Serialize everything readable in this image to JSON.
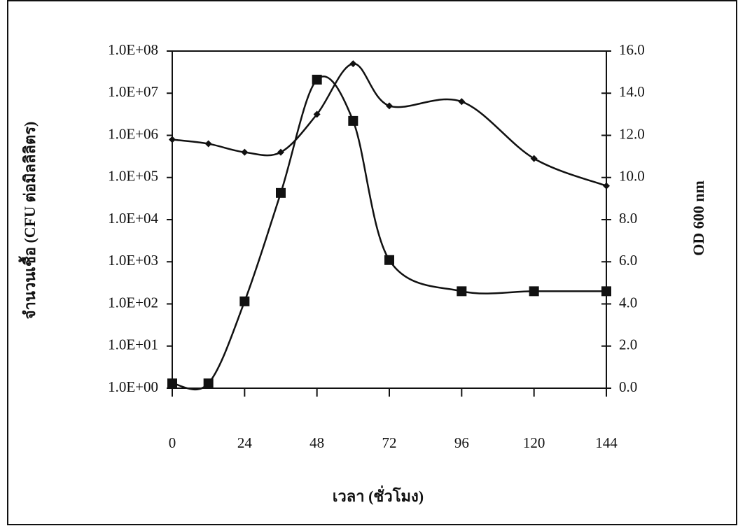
{
  "chart_data": {
    "type": "line",
    "x": [
      0,
      12,
      24,
      36,
      48,
      60,
      72,
      96,
      120,
      144
    ],
    "xlim": [
      0,
      144
    ],
    "xticks": [
      0,
      24,
      48,
      72,
      96,
      120,
      144
    ],
    "x_label": "เวลา (ชั่วโมง)",
    "y_label": "จำนวนเชื้อ (CFU ต่อมิลลิลิตร)",
    "y2_label": "OD 600 nm",
    "yscale": "log",
    "ylim": [
      1,
      100000000
    ],
    "yticks": [
      {
        "value": 1,
        "label": "1.0E+00"
      },
      {
        "value": 10,
        "label": "1.0E+01"
      },
      {
        "value": 100,
        "label": "1.0E+02"
      },
      {
        "value": 1000,
        "label": "1.0E+03"
      },
      {
        "value": 10000,
        "label": "1.0E+04"
      },
      {
        "value": 100000,
        "label": "1.0E+05"
      },
      {
        "value": 1000000,
        "label": "1.0E+06"
      },
      {
        "value": 10000000,
        "label": "1.0E+07"
      },
      {
        "value": 100000000,
        "label": "1.0E+08"
      }
    ],
    "y2lim": [
      0,
      16
    ],
    "y2ticks": [
      {
        "value": 0,
        "label": "0.0"
      },
      {
        "value": 2,
        "label": "2.0"
      },
      {
        "value": 4,
        "label": "4.0"
      },
      {
        "value": 6,
        "label": "6.0"
      },
      {
        "value": 8,
        "label": "8.0"
      },
      {
        "value": 10,
        "label": "10.0"
      },
      {
        "value": 12,
        "label": "12.0"
      },
      {
        "value": 14,
        "label": "14.0"
      },
      {
        "value": 16,
        "label": "16.0"
      }
    ],
    "series": [
      {
        "color": "#111111",
        "marker": "square",
        "values": [
          1.3,
          1.3,
          115,
          43000,
          21000000,
          2200000,
          1100,
          200,
          200,
          200
        ]
      },
      {
        "color": "#111111",
        "marker": "diamond",
        "axis": "y2",
        "values": [
          11.8,
          11.6,
          11.2,
          11.2,
          13.0,
          15.4,
          13.4,
          13.6,
          10.9,
          9.6
        ]
      }
    ]
  }
}
